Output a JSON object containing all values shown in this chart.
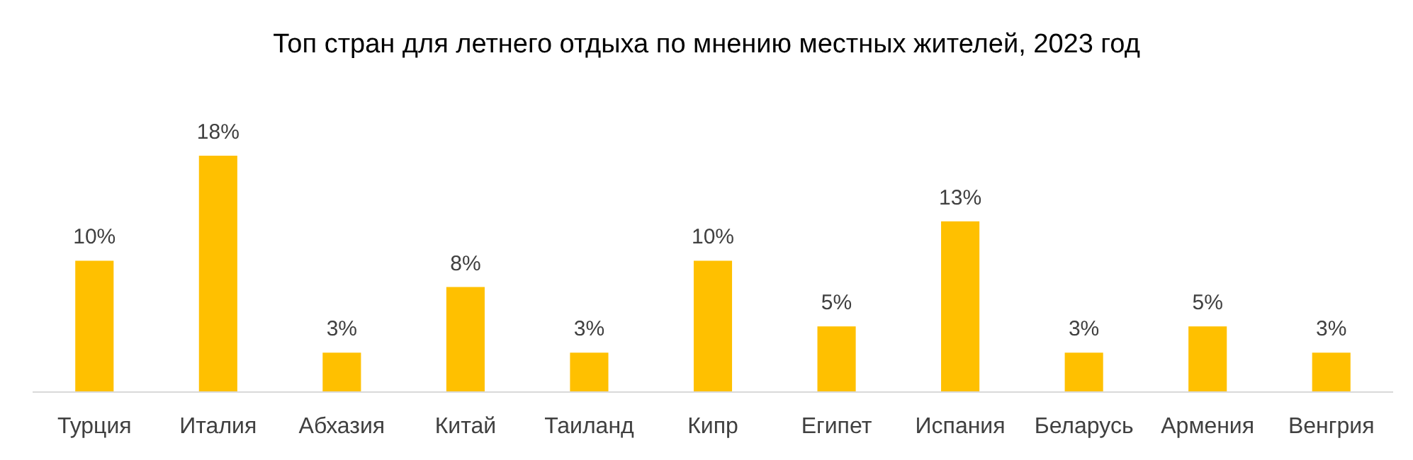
{
  "chart_data": {
    "type": "bar",
    "title": "Топ стран для летнего отдыха по мнению местных жителей, 2023 год",
    "categories": [
      "Турция",
      "Италия",
      "Абхазия",
      "Китай",
      "Таиланд",
      "Кипр",
      "Египет",
      "Испания",
      "Беларусь",
      "Армения",
      "Венгрия"
    ],
    "values": [
      10,
      18,
      3,
      8,
      3,
      10,
      5,
      13,
      3,
      5,
      3
    ],
    "value_labels": [
      "10%",
      "18%",
      "3%",
      "8%",
      "3%",
      "10%",
      "5%",
      "13%",
      "3%",
      "5%",
      "3%"
    ],
    "color": "#ffc000"
  }
}
